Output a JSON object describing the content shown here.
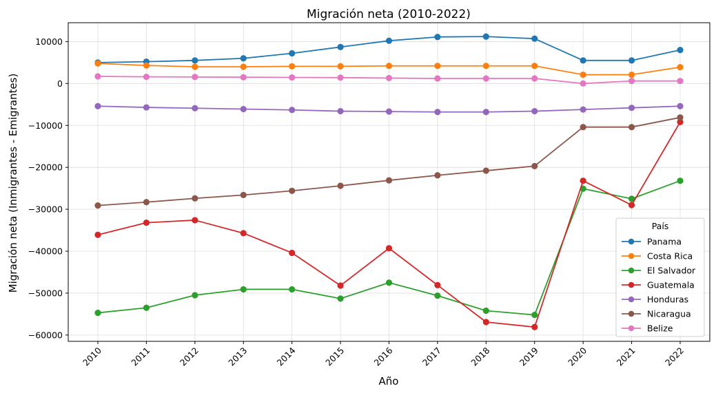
{
  "chart_data": {
    "type": "line",
    "title": "Migración neta (2010-2022)",
    "xlabel": "Año",
    "ylabel": "Migración neta (Inmigrantes - Emigrantes)",
    "categories": [
      "2010",
      "2011",
      "2012",
      "2013",
      "2014",
      "2015",
      "2016",
      "2017",
      "2018",
      "2019",
      "2020",
      "2021",
      "2022"
    ],
    "ylim": [
      -61500,
      14500
    ],
    "yticks": [
      10000,
      0,
      -10000,
      -20000,
      -30000,
      -40000,
      -50000,
      -60000
    ],
    "ytick_labels": [
      "10000",
      "0",
      "−10000",
      "−20000",
      "−30000",
      "−40000",
      "−50000",
      "−60000"
    ],
    "grid": true,
    "legend": {
      "title": "País",
      "placement": "lower-right"
    },
    "series": [
      {
        "name": "Panama",
        "color": "#1f77b4",
        "values": [
          5000,
          5200,
          5500,
          6000,
          7200,
          8700,
          10200,
          11100,
          11200,
          10700,
          5500,
          5500,
          8000
        ]
      },
      {
        "name": "Costa Rica",
        "color": "#ff7f0e",
        "values": [
          4800,
          4300,
          4000,
          4000,
          4100,
          4100,
          4200,
          4200,
          4200,
          4200,
          2100,
          2100,
          3900
        ]
      },
      {
        "name": "El Salvador",
        "color": "#2ca02c",
        "values": [
          -54700,
          -53500,
          -50500,
          -49100,
          -49100,
          -51300,
          -47500,
          -50600,
          -54200,
          -55200,
          -25100,
          -27500,
          -23200
        ]
      },
      {
        "name": "Guatemala",
        "color": "#d62728",
        "values": [
          -36100,
          -33200,
          -32600,
          -35700,
          -40400,
          -48200,
          -39300,
          -48100,
          -56900,
          -58100,
          -23200,
          -29000,
          -9200
        ]
      },
      {
        "name": "Honduras",
        "color": "#9467bd",
        "values": [
          -5400,
          -5700,
          -5900,
          -6100,
          -6300,
          -6600,
          -6700,
          -6800,
          -6800,
          -6600,
          -6200,
          -5800,
          -5400
        ]
      },
      {
        "name": "Nicaragua",
        "color": "#8c564b",
        "values": [
          -29100,
          -28300,
          -27400,
          -26600,
          -25600,
          -24400,
          -23100,
          -21900,
          -20800,
          -19700,
          -10400,
          -10400,
          -8100
        ]
      },
      {
        "name": "Belize",
        "color": "#e377c2",
        "values": [
          1700,
          1600,
          1550,
          1500,
          1450,
          1400,
          1300,
          1200,
          1200,
          1200,
          0,
          600,
          600
        ]
      }
    ]
  }
}
